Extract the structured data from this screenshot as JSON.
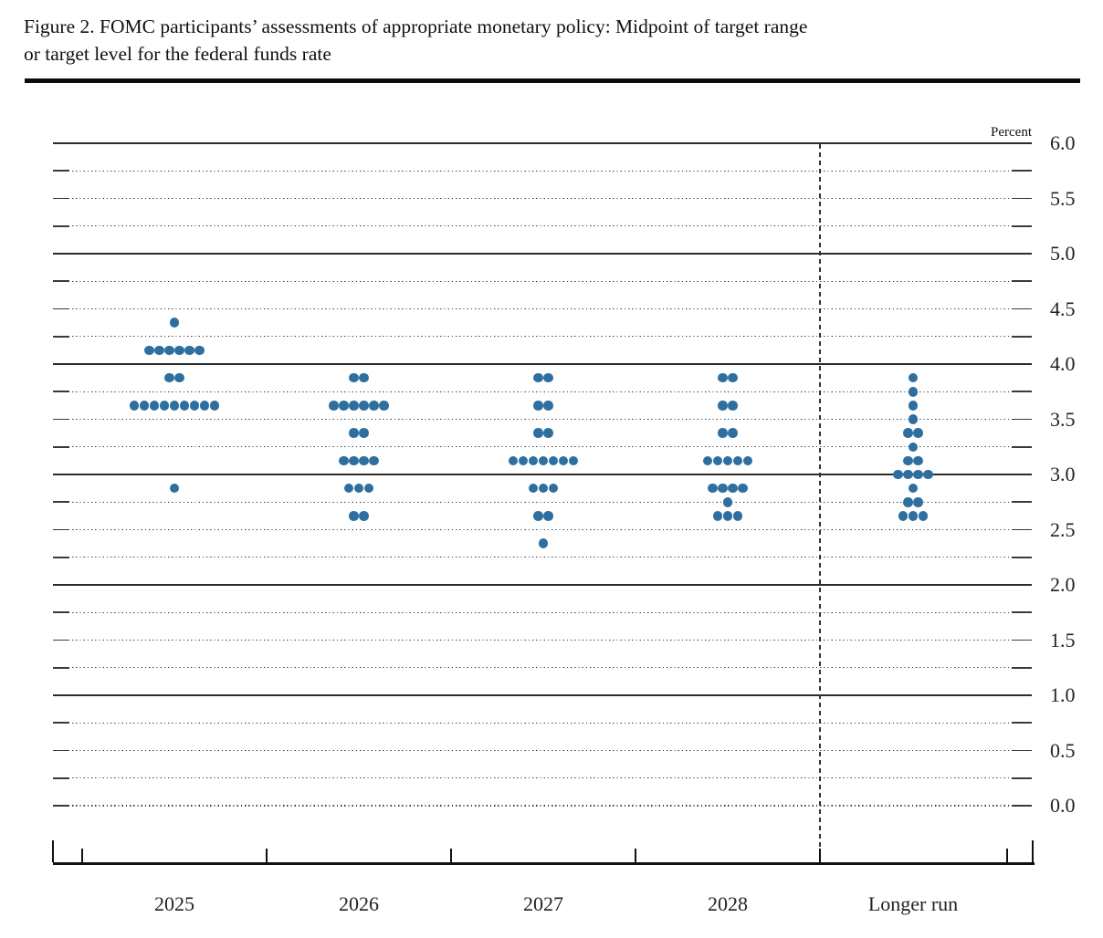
{
  "figure": {
    "title_line1": "Figure 2. FOMC participants’ assessments of appropriate monetary policy: Midpoint of target range",
    "title_line2": "or target level for the federal funds rate"
  },
  "chart_data": {
    "type": "scatter",
    "subtype": "fomc-dot-plot",
    "title": "Figure 2. FOMC participants’ assessments of appropriate monetary policy: Midpoint of target range or target level for the federal funds rate",
    "xlabel": "",
    "ylabel": "Percent",
    "unit": "percent",
    "ylim": [
      0.0,
      6.0
    ],
    "y_minor_step": 0.25,
    "y_label_step": 0.5,
    "y_tick_labels": [
      "0.0",
      "0.5",
      "1.0",
      "1.5",
      "2.0",
      "2.5",
      "3.0",
      "3.5",
      "4.0",
      "4.5",
      "5.0",
      "5.5",
      "6.0"
    ],
    "grid": "dotted lines at each 0.25, solid lines at integers, short edge ticks left and right",
    "legend_position": "none",
    "dot_color": "#2E6F9F",
    "separator": "vertical dashed line between 2028 and Longer run",
    "categories": [
      "2025",
      "2026",
      "2027",
      "2028",
      "Longer run"
    ],
    "participants_per_column": 19,
    "series": [
      {
        "name": "2025",
        "dots": [
          {
            "rate": 4.375,
            "count": 1
          },
          {
            "rate": 4.125,
            "count": 6
          },
          {
            "rate": 3.875,
            "count": 2
          },
          {
            "rate": 3.625,
            "count": 9
          },
          {
            "rate": 2.875,
            "count": 1
          }
        ]
      },
      {
        "name": "2026",
        "dots": [
          {
            "rate": 3.875,
            "count": 2
          },
          {
            "rate": 3.625,
            "count": 6
          },
          {
            "rate": 3.375,
            "count": 2
          },
          {
            "rate": 3.125,
            "count": 4
          },
          {
            "rate": 2.875,
            "count": 3
          },
          {
            "rate": 2.625,
            "count": 2
          }
        ]
      },
      {
        "name": "2027",
        "dots": [
          {
            "rate": 3.875,
            "count": 2
          },
          {
            "rate": 3.625,
            "count": 2
          },
          {
            "rate": 3.375,
            "count": 2
          },
          {
            "rate": 3.125,
            "count": 7
          },
          {
            "rate": 2.875,
            "count": 3
          },
          {
            "rate": 2.625,
            "count": 2
          },
          {
            "rate": 2.375,
            "count": 1
          }
        ]
      },
      {
        "name": "2028",
        "dots": [
          {
            "rate": 3.875,
            "count": 2
          },
          {
            "rate": 3.625,
            "count": 2
          },
          {
            "rate": 3.375,
            "count": 2
          },
          {
            "rate": 3.125,
            "count": 5
          },
          {
            "rate": 2.875,
            "count": 4
          },
          {
            "rate": 2.75,
            "count": 1
          },
          {
            "rate": 2.625,
            "count": 3
          }
        ]
      },
      {
        "name": "Longer run",
        "dots": [
          {
            "rate": 3.875,
            "count": 1
          },
          {
            "rate": 3.75,
            "count": 1
          },
          {
            "rate": 3.625,
            "count": 1
          },
          {
            "rate": 3.5,
            "count": 1
          },
          {
            "rate": 3.375,
            "count": 2
          },
          {
            "rate": 3.25,
            "count": 1
          },
          {
            "rate": 3.125,
            "count": 2
          },
          {
            "rate": 3.0,
            "count": 4
          },
          {
            "rate": 2.875,
            "count": 1
          },
          {
            "rate": 2.75,
            "count": 2
          },
          {
            "rate": 2.625,
            "count": 3
          }
        ]
      }
    ]
  }
}
